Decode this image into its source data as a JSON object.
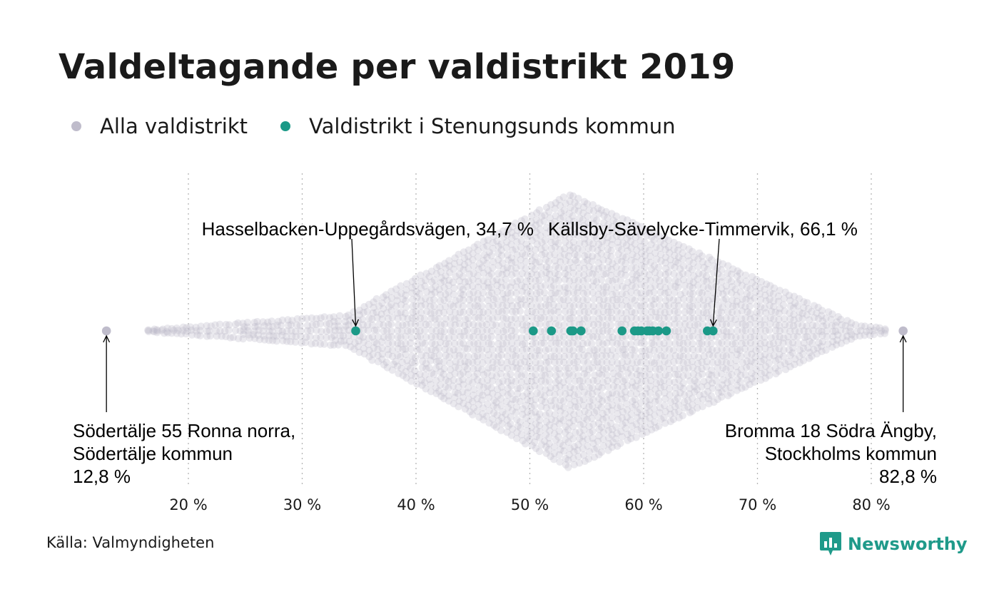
{
  "title": "Valdeltagande per valdistrikt 2019",
  "legend": [
    {
      "label": "Alla valdistrikt",
      "color": "#bfbccb"
    },
    {
      "label": "Valdistrikt i Stenungsunds kommun",
      "color": "#1b9987"
    }
  ],
  "source": "Källa: Valmyndigheten",
  "brand": "Newsworthy",
  "chart_data": {
    "type": "scatter",
    "subtype": "beeswarm",
    "x_unit": "%",
    "xlim": [
      12.8,
      82.8
    ],
    "x_ticks": [
      20,
      30,
      40,
      50,
      60,
      70,
      80
    ],
    "x_tick_labels": [
      "20 %",
      "30 %",
      "40 %",
      "50 %",
      "60 %",
      "70 %",
      "80 %"
    ],
    "grid": "vertical dotted lines at ticks",
    "distribution_peak": 53.5,
    "series": [
      {
        "name": "Alla valdistrikt",
        "color": "#bfbccb",
        "note": "Dense beeswarm of all districts; widest around 53–54 %.",
        "extremes": [
          12.8,
          82.8
        ]
      },
      {
        "name": "Valdistrikt i Stenungsunds kommun",
        "color": "#1b9987",
        "values": [
          34.7,
          50.3,
          51.9,
          53.6,
          53.8,
          54.5,
          58.1,
          59.2,
          59.5,
          59.8,
          60.3,
          60.5,
          60.8,
          61.3,
          62.0,
          65.6,
          66.1
        ]
      }
    ],
    "annotations": [
      {
        "lines": [
          "Hasselbacken-Uppegårdsvägen, 34,7 %"
        ],
        "value": 34.7,
        "position": "above-left"
      },
      {
        "lines": [
          "Källsby-Sävelycke-Timmervik, 66,1 %"
        ],
        "value": 66.1,
        "position": "above-right"
      },
      {
        "lines": [
          "Södertälje 55 Ronna norra,",
          "Södertälje kommun",
          "12,8 %"
        ],
        "value": 12.8,
        "position": "below-left"
      },
      {
        "lines": [
          "Bromma 18 Södra Ängby,",
          "Stockholms kommun",
          "82,8 %"
        ],
        "value": 82.8,
        "position": "below-right"
      }
    ]
  }
}
